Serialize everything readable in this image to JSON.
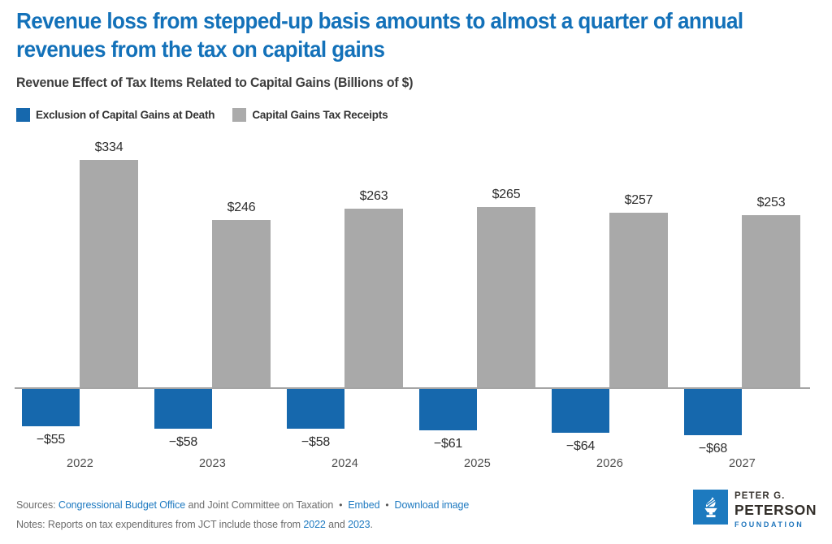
{
  "header": {
    "title": "Revenue loss from stepped-up basis amounts to almost a quarter of annual revenues from the tax on capital gains",
    "subtitle": "Revenue Effect of Tax Items Related to Capital Gains (Billions of $)"
  },
  "legend": {
    "items": [
      {
        "label": "Exclusion of Capital Gains at Death",
        "color": "#1668ad"
      },
      {
        "label": "Capital Gains Tax Receipts",
        "color": "#ababab"
      }
    ]
  },
  "chart_data": {
    "type": "bar",
    "title": "Revenue Effect of Tax Items Related to Capital Gains (Billions of $)",
    "categories": [
      "2022",
      "2023",
      "2024",
      "2025",
      "2026",
      "2027"
    ],
    "series": [
      {
        "name": "Exclusion of Capital Gains at Death",
        "color": "#1668ad",
        "values": [
          -55,
          -58,
          -58,
          -61,
          -64,
          -68
        ],
        "labels": [
          "−$55",
          "−$58",
          "−$58",
          "−$61",
          "−$64",
          "−$68"
        ]
      },
      {
        "name": "Capital Gains Tax Receipts",
        "color": "#a9a9a9",
        "values": [
          334,
          246,
          263,
          265,
          257,
          253
        ],
        "labels": [
          "$334",
          "$246",
          "$263",
          "$265",
          "$257",
          "$253"
        ]
      }
    ],
    "xlabel": "",
    "ylabel": "",
    "ylim": [
      -80,
      360
    ],
    "grid": false,
    "legend_position": "top-left",
    "baseline": 0
  },
  "footer": {
    "sources_prefix": "Sources: ",
    "source_link": "Congressional Budget Office",
    "sources_middle": " and Joint Committee on Taxation",
    "bullet": "•",
    "embed_label": "Embed",
    "download_label": "Download image",
    "notes_prefix": "Notes: Reports on tax expenditures from JCT include those from ",
    "notes_link_1": "2022",
    "notes_and": " and ",
    "notes_link_2": "2023",
    "notes_period": "."
  },
  "logo": {
    "line1": "PETER G.",
    "line2": "PETERSON",
    "line3": "FOUNDATION"
  },
  "colors": {
    "title_blue": "#1371b9",
    "bar_blue": "#1668ad",
    "bar_gray": "#a9a9a9",
    "link_blue": "#1d79c0",
    "axis_gray": "#a5a5a5"
  }
}
